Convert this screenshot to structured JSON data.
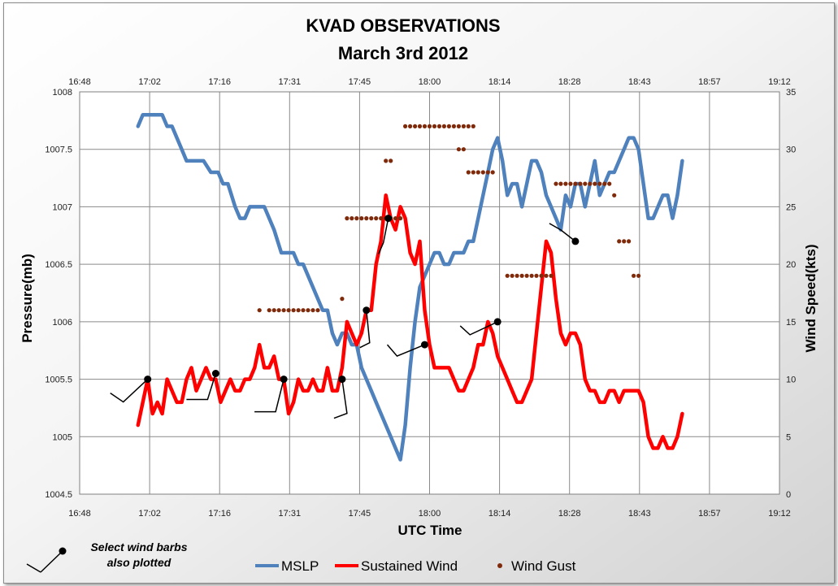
{
  "chart_data": {
    "type": "line",
    "title": "KVAD OBSERVATIONS",
    "subtitle": "March 3rd 2012",
    "xlabel": "UTC Time",
    "ylabel_left": "Pressure(mb)",
    "ylabel_right": "Wind Speed(kts)",
    "x_ticks": [
      "16:48",
      "17:02",
      "17:16",
      "17:31",
      "17:45",
      "18:00",
      "18:14",
      "18:28",
      "18:43",
      "18:57",
      "19:12"
    ],
    "x_range_minutes": [
      0,
      144
    ],
    "y_left_ticks": [
      "1004.5",
      "1005",
      "1005.5",
      "1006",
      "1006.5",
      "1007",
      "1007.5",
      "1008"
    ],
    "y_left_range": [
      1004.5,
      1008
    ],
    "y_right_ticks": [
      "0",
      "5",
      "10",
      "15",
      "20",
      "25",
      "30",
      "35"
    ],
    "y_right_range": [
      0,
      35
    ],
    "grid": true,
    "legend_position": "bottom",
    "series": [
      {
        "name": "MSLP",
        "axis": "left",
        "color": "#4f81bd",
        "points": [
          [
            12,
            1007.7
          ],
          [
            13,
            1007.8
          ],
          [
            14.5,
            1007.8
          ],
          [
            17,
            1007.8
          ],
          [
            18,
            1007.7
          ],
          [
            19,
            1007.7
          ],
          [
            21,
            1007.5
          ],
          [
            22,
            1007.4
          ],
          [
            24,
            1007.4
          ],
          [
            25.5,
            1007.4
          ],
          [
            27,
            1007.3
          ],
          [
            28.5,
            1007.3
          ],
          [
            29.5,
            1007.2
          ],
          [
            30.5,
            1007.2
          ],
          [
            32,
            1007.0
          ],
          [
            33,
            1006.9
          ],
          [
            34,
            1006.9
          ],
          [
            35,
            1007.0
          ],
          [
            37,
            1007.0
          ],
          [
            38,
            1007.0
          ],
          [
            40,
            1006.8
          ],
          [
            41.5,
            1006.6
          ],
          [
            43,
            1006.6
          ],
          [
            44,
            1006.6
          ],
          [
            45,
            1006.5
          ],
          [
            46,
            1006.5
          ],
          [
            48,
            1006.3
          ],
          [
            50,
            1006.1
          ],
          [
            51,
            1006.1
          ],
          [
            52,
            1005.9
          ],
          [
            53,
            1005.8
          ],
          [
            54,
            1005.9
          ],
          [
            55,
            1005.9
          ],
          [
            56,
            1005.8
          ],
          [
            57,
            1005.8
          ],
          [
            58,
            1005.6
          ],
          [
            59,
            1005.5
          ],
          [
            60,
            1005.4
          ],
          [
            61,
            1005.3
          ],
          [
            62,
            1005.2
          ],
          [
            63,
            1005.1
          ],
          [
            64,
            1005.0
          ],
          [
            65,
            1004.9
          ],
          [
            66,
            1004.8
          ],
          [
            67,
            1005.1
          ],
          [
            68,
            1005.6
          ],
          [
            69,
            1006.0
          ],
          [
            70,
            1006.3
          ],
          [
            71,
            1006.4
          ],
          [
            72,
            1006.5
          ],
          [
            73,
            1006.6
          ],
          [
            74,
            1006.6
          ],
          [
            75,
            1006.5
          ],
          [
            76,
            1006.5
          ],
          [
            77,
            1006.6
          ],
          [
            78,
            1006.6
          ],
          [
            79,
            1006.6
          ],
          [
            80,
            1006.7
          ],
          [
            81,
            1006.7
          ],
          [
            82,
            1006.9
          ],
          [
            83,
            1007.1
          ],
          [
            84,
            1007.3
          ],
          [
            85,
            1007.5
          ],
          [
            86,
            1007.6
          ],
          [
            87,
            1007.4
          ],
          [
            88,
            1007.1
          ],
          [
            89,
            1007.2
          ],
          [
            90,
            1007.2
          ],
          [
            91,
            1007.0
          ],
          [
            92,
            1007.2
          ],
          [
            93,
            1007.4
          ],
          [
            94,
            1007.4
          ],
          [
            95,
            1007.3
          ],
          [
            96,
            1007.1
          ],
          [
            97,
            1007.0
          ],
          [
            98,
            1006.9
          ],
          [
            99,
            1006.8
          ],
          [
            100,
            1007.1
          ],
          [
            101,
            1007.0
          ],
          [
            102,
            1007.2
          ],
          [
            103,
            1007.2
          ],
          [
            104,
            1007.0
          ],
          [
            105,
            1007.2
          ],
          [
            106,
            1007.4
          ],
          [
            107,
            1007.1
          ],
          [
            108,
            1007.2
          ],
          [
            109,
            1007.3
          ],
          [
            110,
            1007.3
          ],
          [
            111,
            1007.4
          ],
          [
            112,
            1007.5
          ],
          [
            113,
            1007.6
          ],
          [
            114,
            1007.6
          ],
          [
            115,
            1007.5
          ],
          [
            116,
            1007.2
          ],
          [
            117,
            1006.9
          ],
          [
            118,
            1006.9
          ],
          [
            119,
            1007.0
          ],
          [
            120,
            1007.1
          ],
          [
            121,
            1007.1
          ],
          [
            122,
            1006.9
          ],
          [
            123,
            1007.1
          ],
          [
            124,
            1007.4
          ]
        ]
      },
      {
        "name": "Sustained Wind",
        "axis": "right",
        "color": "#ff0000",
        "points": [
          [
            12,
            6
          ],
          [
            13,
            8
          ],
          [
            14,
            10
          ],
          [
            15,
            7
          ],
          [
            16,
            8
          ],
          [
            17,
            7
          ],
          [
            18,
            10
          ],
          [
            19,
            9
          ],
          [
            20,
            8
          ],
          [
            21,
            8
          ],
          [
            22,
            10
          ],
          [
            23,
            11
          ],
          [
            24,
            9
          ],
          [
            25,
            10
          ],
          [
            26,
            11
          ],
          [
            27,
            10
          ],
          [
            28,
            10
          ],
          [
            29,
            8
          ],
          [
            30,
            9
          ],
          [
            31,
            10
          ],
          [
            32,
            9
          ],
          [
            33,
            9
          ],
          [
            34,
            10
          ],
          [
            35,
            10
          ],
          [
            36,
            11
          ],
          [
            37,
            13
          ],
          [
            38,
            11
          ],
          [
            39,
            11
          ],
          [
            40,
            12
          ],
          [
            41,
            10
          ],
          [
            42,
            10
          ],
          [
            43,
            7
          ],
          [
            44,
            8
          ],
          [
            45,
            10
          ],
          [
            46,
            9
          ],
          [
            47,
            9
          ],
          [
            48,
            10
          ],
          [
            49,
            9
          ],
          [
            50,
            9
          ],
          [
            51,
            11
          ],
          [
            52,
            9
          ],
          [
            53,
            9
          ],
          [
            54,
            11
          ],
          [
            55,
            15
          ],
          [
            56,
            14
          ],
          [
            57,
            13
          ],
          [
            58,
            14
          ],
          [
            59,
            16
          ],
          [
            60,
            16
          ],
          [
            61,
            20
          ],
          [
            62,
            22
          ],
          [
            63,
            26
          ],
          [
            64,
            24
          ],
          [
            65,
            23
          ],
          [
            66,
            25
          ],
          [
            67,
            24
          ],
          [
            68,
            21
          ],
          [
            69,
            20
          ],
          [
            70,
            22
          ],
          [
            71,
            16
          ],
          [
            72,
            13
          ],
          [
            73,
            11
          ],
          [
            74,
            11
          ],
          [
            75,
            11
          ],
          [
            76,
            11
          ],
          [
            77,
            10
          ],
          [
            78,
            9
          ],
          [
            79,
            9
          ],
          [
            80,
            10
          ],
          [
            81,
            11
          ],
          [
            82,
            13
          ],
          [
            83,
            13
          ],
          [
            84,
            15
          ],
          [
            85,
            14
          ],
          [
            86,
            12
          ],
          [
            87,
            11
          ],
          [
            88,
            10
          ],
          [
            89,
            9
          ],
          [
            90,
            8
          ],
          [
            91,
            8
          ],
          [
            92,
            9
          ],
          [
            93,
            10
          ],
          [
            94,
            14
          ],
          [
            95,
            18
          ],
          [
            96,
            22
          ],
          [
            97,
            21
          ],
          [
            98,
            17
          ],
          [
            99,
            14
          ],
          [
            100,
            13
          ],
          [
            101,
            14
          ],
          [
            102,
            14
          ],
          [
            103,
            13
          ],
          [
            104,
            10
          ],
          [
            105,
            9
          ],
          [
            106,
            9
          ],
          [
            107,
            8
          ],
          [
            108,
            8
          ],
          [
            109,
            9
          ],
          [
            110,
            9
          ],
          [
            111,
            8
          ],
          [
            112,
            9
          ],
          [
            113,
            9
          ],
          [
            114,
            9
          ],
          [
            115,
            9
          ],
          [
            116,
            8
          ],
          [
            117,
            5
          ],
          [
            118,
            4
          ],
          [
            119,
            4
          ],
          [
            120,
            5
          ],
          [
            121,
            4
          ],
          [
            122,
            4
          ],
          [
            123,
            5
          ],
          [
            124,
            7
          ]
        ]
      },
      {
        "name": "Wind Gust",
        "axis": "right",
        "color": "#7f2a0a",
        "type": "scatter",
        "points": [
          [
            37,
            16
          ],
          [
            39,
            16
          ],
          [
            40,
            16
          ],
          [
            41,
            16
          ],
          [
            42,
            16
          ],
          [
            43,
            16
          ],
          [
            44,
            16
          ],
          [
            45,
            16
          ],
          [
            46,
            16
          ],
          [
            47,
            16
          ],
          [
            48,
            16
          ],
          [
            49,
            16
          ],
          [
            54,
            17
          ],
          [
            55,
            24
          ],
          [
            56,
            24
          ],
          [
            57,
            24
          ],
          [
            58,
            24
          ],
          [
            59,
            24
          ],
          [
            60,
            24
          ],
          [
            61,
            24
          ],
          [
            62,
            24
          ],
          [
            63,
            24
          ],
          [
            64,
            24
          ],
          [
            65,
            24
          ],
          [
            66,
            24
          ],
          [
            63,
            29
          ],
          [
            64,
            29
          ],
          [
            67,
            32
          ],
          [
            68,
            32
          ],
          [
            69,
            32
          ],
          [
            70,
            32
          ],
          [
            71,
            32
          ],
          [
            72,
            32
          ],
          [
            73,
            32
          ],
          [
            74,
            32
          ],
          [
            75,
            32
          ],
          [
            76,
            32
          ],
          [
            77,
            32
          ],
          [
            78,
            32
          ],
          [
            79,
            32
          ],
          [
            80,
            32
          ],
          [
            81,
            32
          ],
          [
            78,
            30
          ],
          [
            79,
            30
          ],
          [
            80,
            28
          ],
          [
            81,
            28
          ],
          [
            82,
            28
          ],
          [
            83,
            28
          ],
          [
            84,
            28
          ],
          [
            85,
            28
          ],
          [
            88,
            19
          ],
          [
            89,
            19
          ],
          [
            90,
            19
          ],
          [
            91,
            19
          ],
          [
            92,
            19
          ],
          [
            93,
            19
          ],
          [
            94,
            19
          ],
          [
            95,
            19
          ],
          [
            96,
            19
          ],
          [
            97,
            19
          ],
          [
            98,
            27
          ],
          [
            99,
            27
          ],
          [
            100,
            27
          ],
          [
            101,
            27
          ],
          [
            102,
            27
          ],
          [
            103,
            27
          ],
          [
            104,
            27
          ],
          [
            105,
            27
          ],
          [
            106,
            27
          ],
          [
            107,
            27
          ],
          [
            108,
            27
          ],
          [
            109,
            27
          ],
          [
            110,
            26
          ],
          [
            111,
            22
          ],
          [
            112,
            22
          ],
          [
            113,
            22
          ],
          [
            114,
            19
          ],
          [
            115,
            19
          ]
        ]
      }
    ],
    "wind_barbs": [
      [
        14,
        10
      ],
      [
        28,
        10.5
      ],
      [
        42,
        10
      ],
      [
        54,
        10
      ],
      [
        59,
        16
      ],
      [
        63.5,
        24
      ],
      [
        71,
        13
      ],
      [
        86,
        15
      ],
      [
        102,
        22
      ]
    ]
  },
  "legend": {
    "note_line1": "Select wind barbs",
    "note_line2": "also plotted"
  }
}
